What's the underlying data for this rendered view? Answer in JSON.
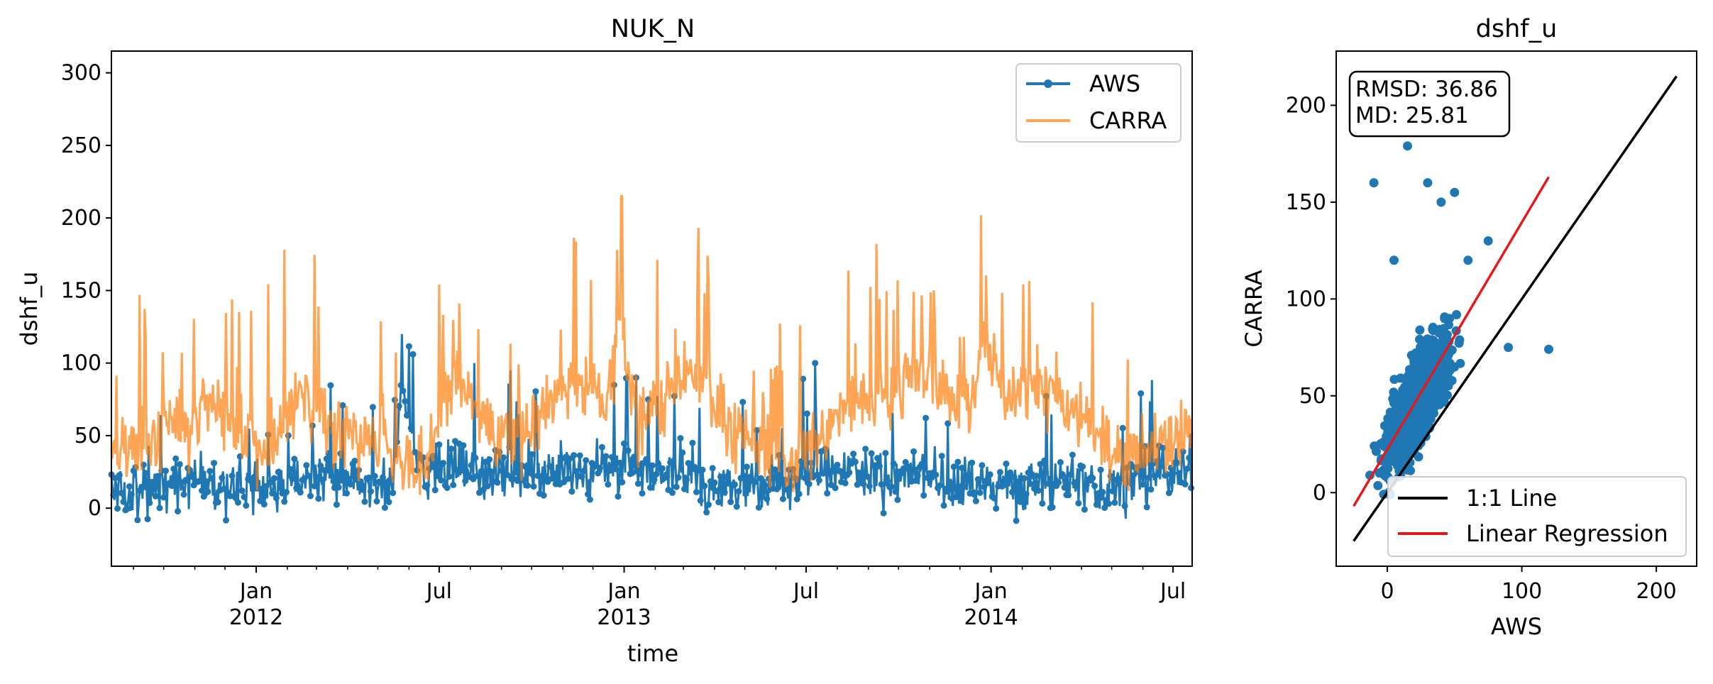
{
  "chart_data": [
    {
      "type": "line",
      "title": "NUK_N",
      "xlabel": "time",
      "ylabel": "dshf_u",
      "xlim": [
        "2011-08-10",
        "2014-07-20"
      ],
      "ylim": [
        -40,
        315
      ],
      "yticks": [
        0,
        50,
        100,
        150,
        200,
        250,
        300
      ],
      "xticks": [
        {
          "date": "2012-01-01",
          "line1": "Jan",
          "line2": "2012"
        },
        {
          "date": "2012-07-01",
          "line1": "Jul",
          "line2": ""
        },
        {
          "date": "2013-01-01",
          "line1": "Jan",
          "line2": "2013"
        },
        {
          "date": "2013-07-01",
          "line1": "Jul",
          "line2": ""
        },
        {
          "date": "2014-01-01",
          "line1": "Jan",
          "line2": "2014"
        },
        {
          "date": "2014-07-01",
          "line1": "Jul",
          "line2": ""
        }
      ],
      "grid": false,
      "legend": {
        "placement": "upper right",
        "entries": [
          "AWS",
          "CARRA"
        ]
      },
      "series": [
        {
          "name": "AWS",
          "color": "#1f77b4",
          "style": "line with dot markers (daily)",
          "x": [
            "2011-08-15",
            "2011-09-15",
            "2011-10-15",
            "2011-11-15",
            "2011-12-15",
            "2012-01-15",
            "2012-02-15",
            "2012-03-15",
            "2012-04-15",
            "2012-05-15",
            "2012-05-25",
            "2012-06-15",
            "2012-07-15",
            "2012-08-15",
            "2012-09-15",
            "2012-10-15",
            "2012-11-15",
            "2012-12-15",
            "2013-01-15",
            "2013-02-15",
            "2013-03-15",
            "2013-04-15",
            "2013-05-15",
            "2013-06-15",
            "2013-07-15",
            "2013-08-15",
            "2013-09-15",
            "2013-10-15",
            "2013-11-15",
            "2013-12-15",
            "2014-01-15",
            "2014-02-15",
            "2014-03-15",
            "2014-04-15",
            "2014-05-15",
            "2014-06-15",
            "2014-07-15"
          ],
          "values": [
            10,
            5,
            15,
            20,
            15,
            10,
            20,
            25,
            15,
            10,
            120,
            20,
            40,
            25,
            30,
            35,
            25,
            30,
            35,
            30,
            20,
            10,
            15,
            20,
            25,
            30,
            20,
            25,
            20,
            15,
            10,
            15,
            20,
            10,
            15,
            25,
            35
          ],
          "note": "representative sampled values; full daily range approx -25 to 120"
        },
        {
          "name": "CARRA",
          "color": "#ff7f0e",
          "style": "line, semi-transparent",
          "x": [
            "2011-08-15",
            "2011-09-15",
            "2011-10-15",
            "2011-11-15",
            "2011-12-15",
            "2012-01-15",
            "2012-02-15",
            "2012-03-15",
            "2012-04-15",
            "2012-05-15",
            "2012-06-15",
            "2012-07-15",
            "2012-08-15",
            "2012-09-15",
            "2012-10-15",
            "2012-11-15",
            "2012-12-15",
            "2012-12-29",
            "2013-01-15",
            "2013-02-15",
            "2013-03-15",
            "2013-04-15",
            "2013-05-15",
            "2013-06-15",
            "2013-07-15",
            "2013-08-15",
            "2013-09-15",
            "2013-10-15",
            "2013-11-15",
            "2013-12-15",
            "2013-12-22",
            "2014-01-15",
            "2014-02-15",
            "2014-03-15",
            "2014-04-15",
            "2014-05-15",
            "2014-06-15",
            "2014-07-15"
          ],
          "values": [
            40,
            60,
            90,
            110,
            70,
            60,
            130,
            80,
            60,
            50,
            40,
            140,
            90,
            60,
            110,
            145,
            120,
            215,
            90,
            120,
            150,
            80,
            60,
            40,
            70,
            110,
            120,
            150,
            130,
            110,
            202,
            130,
            140,
            120,
            80,
            40,
            60,
            80
          ],
          "note": "representative sampled values; full daily range approx -20 to 215"
        }
      ]
    },
    {
      "type": "scatter",
      "title": "dshf_u",
      "xlabel": "AWS",
      "ylabel": "CARRA",
      "xlim": [
        -38,
        230
      ],
      "ylim": [
        -38,
        228
      ],
      "xticks": [
        0,
        100,
        200
      ],
      "yticks": [
        0,
        50,
        100,
        150,
        200
      ],
      "grid": false,
      "stats": {
        "line1": "RMSD: 36.86",
        "line2": "MD: 25.81"
      },
      "legend": {
        "placement": "lower right",
        "entries": [
          "1:1 Line",
          "Linear Regression"
        ]
      },
      "series": [
        {
          "name": "",
          "color": "#1f77b4",
          "points_note": "dense cloud of roughly 1000 daily pairs, AWS -25..120, CARRA -15..180",
          "outliers": [
            [
              -10,
              160
            ],
            [
              5,
              120
            ],
            [
              15,
              179
            ],
            [
              30,
              160
            ],
            [
              40,
              150
            ],
            [
              50,
              155
            ],
            [
              60,
              120
            ],
            [
              75,
              130
            ],
            [
              90,
              75
            ],
            [
              120,
              74
            ]
          ]
        },
        {
          "name": "1:1 Line",
          "color": "#000000",
          "x": [
            -25,
            215
          ],
          "y": [
            -25,
            215
          ]
        },
        {
          "name": "Linear Regression",
          "color": "#e31a1c",
          "x": [
            -25,
            120
          ],
          "y": [
            -7,
            163
          ]
        }
      ]
    }
  ]
}
